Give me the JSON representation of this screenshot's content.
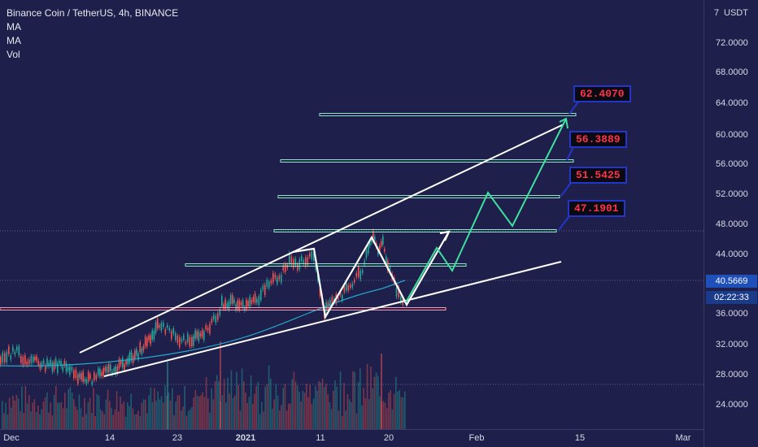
{
  "legend": {
    "symbol": "Binance Coin / TetherUS, 4h, BINANCE",
    "ma1": "MA",
    "ma2": "MA",
    "vol": "Vol"
  },
  "price_axis": {
    "currency": "USDT",
    "top_partial": "7",
    "ticks": [
      "72.0000",
      "68.0000",
      "64.0000",
      "60.0000",
      "56.0000",
      "52.0000",
      "48.0000",
      "44.0000",
      "36.0000",
      "32.0000",
      "28.0000",
      "24.0000"
    ],
    "current_price": "40.5669",
    "countdown": "02:22:33"
  },
  "time_axis": {
    "ticks": [
      {
        "label": "Dec",
        "bold": false
      },
      {
        "label": "14",
        "bold": false
      },
      {
        "label": "23",
        "bold": false
      },
      {
        "label": "2021",
        "bold": true
      },
      {
        "label": "11",
        "bold": false
      },
      {
        "label": "20",
        "bold": false
      },
      {
        "label": "Feb",
        "bold": false
      },
      {
        "label": "15",
        "bold": false
      },
      {
        "label": "Mar",
        "bold": false
      }
    ]
  },
  "targets": [
    "62.4070",
    "56.3889",
    "51.5425",
    "47.1901"
  ],
  "colors": {
    "background": "#1e1f4a",
    "up_candle": "#26a69a",
    "down_candle": "#ef5350",
    "target_text": "#ff3344",
    "target_border": "#2436c8",
    "projection": "#3ee0a0",
    "price_badge": "#1f4fb8",
    "countdown_badge": "#1a3a8a"
  }
}
